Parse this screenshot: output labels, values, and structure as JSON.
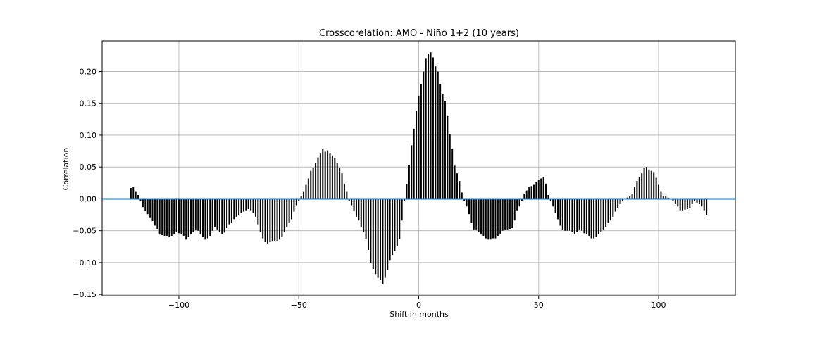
{
  "chart_data": {
    "type": "bar",
    "title": "Crosscorelation: AMO - Niño 1+2 (10 years)",
    "xlabel": "Shift in months",
    "ylabel": "Correlation",
    "xlim": [
      -132,
      132
    ],
    "ylim": [
      -0.152,
      0.248
    ],
    "xticks": [
      -100,
      -50,
      0,
      50,
      100
    ],
    "yticks": [
      -0.15,
      -0.1,
      -0.05,
      0.0,
      0.05,
      0.1,
      0.15,
      0.2
    ],
    "ytick_labels": [
      "−0.15",
      "−0.10",
      "−0.05",
      "0.00",
      "0.05",
      "0.10",
      "0.15",
      "0.20"
    ],
    "xtick_labels": [
      "−100",
      "−50",
      "0",
      "50",
      "100"
    ],
    "grid": true,
    "bar_color": "#000000",
    "zero_line_color": "#1f77b4",
    "x_start": -120,
    "x_step": 1,
    "values": [
      0.017,
      0.019,
      0.012,
      0.006,
      -0.004,
      -0.013,
      -0.019,
      -0.024,
      -0.029,
      -0.035,
      -0.042,
      -0.047,
      -0.056,
      -0.057,
      -0.058,
      -0.058,
      -0.06,
      -0.058,
      -0.055,
      -0.052,
      -0.054,
      -0.056,
      -0.058,
      -0.064,
      -0.06,
      -0.056,
      -0.052,
      -0.048,
      -0.05,
      -0.056,
      -0.06,
      -0.064,
      -0.062,
      -0.058,
      -0.05,
      -0.044,
      -0.048,
      -0.052,
      -0.055,
      -0.053,
      -0.046,
      -0.04,
      -0.037,
      -0.032,
      -0.028,
      -0.025,
      -0.022,
      -0.02,
      -0.018,
      -0.016,
      -0.018,
      -0.022,
      -0.028,
      -0.04,
      -0.052,
      -0.062,
      -0.068,
      -0.07,
      -0.068,
      -0.066,
      -0.066,
      -0.066,
      -0.064,
      -0.06,
      -0.052,
      -0.044,
      -0.038,
      -0.032,
      -0.02,
      -0.01,
      -0.004,
      0.004,
      0.012,
      0.022,
      0.032,
      0.044,
      0.048,
      0.056,
      0.065,
      0.072,
      0.078,
      0.074,
      0.076,
      0.072,
      0.068,
      0.064,
      0.056,
      0.048,
      0.04,
      0.024,
      0.012,
      -0.004,
      -0.01,
      -0.018,
      -0.028,
      -0.034,
      -0.044,
      -0.052,
      -0.063,
      -0.08,
      -0.1,
      -0.11,
      -0.118,
      -0.124,
      -0.127,
      -0.134,
      -0.124,
      -0.112,
      -0.096,
      -0.088,
      -0.082,
      -0.074,
      -0.063,
      -0.034,
      -0.004,
      0.023,
      0.053,
      0.084,
      0.11,
      0.138,
      0.162,
      0.18,
      0.2,
      0.22,
      0.228,
      0.23,
      0.222,
      0.208,
      0.2,
      0.18,
      0.164,
      0.154,
      0.13,
      0.102,
      0.078,
      0.052,
      0.04,
      0.028,
      0.01,
      -0.004,
      -0.012,
      -0.024,
      -0.038,
      -0.048,
      -0.048,
      -0.052,
      -0.056,
      -0.058,
      -0.062,
      -0.064,
      -0.064,
      -0.062,
      -0.062,
      -0.058,
      -0.056,
      -0.05,
      -0.048,
      -0.048,
      -0.047,
      -0.046,
      -0.034,
      -0.018,
      -0.012,
      -0.004,
      0.008,
      0.013,
      0.018,
      0.02,
      0.022,
      0.026,
      0.03,
      0.032,
      0.034,
      0.024,
      0.006,
      -0.004,
      -0.012,
      -0.022,
      -0.032,
      -0.042,
      -0.048,
      -0.05,
      -0.05,
      -0.05,
      -0.052,
      -0.056,
      -0.052,
      -0.048,
      -0.05,
      -0.054,
      -0.056,
      -0.058,
      -0.062,
      -0.062,
      -0.06,
      -0.056,
      -0.052,
      -0.048,
      -0.044,
      -0.038,
      -0.034,
      -0.028,
      -0.02,
      -0.014,
      -0.008,
      -0.004,
      0.001,
      0.002,
      0.004,
      0.008,
      0.018,
      0.028,
      0.034,
      0.04,
      0.048,
      0.05,
      0.046,
      0.044,
      0.042,
      0.033,
      0.022,
      0.012,
      0.005,
      0.004,
      0.002,
      -0.001,
      -0.004,
      -0.008,
      -0.012,
      -0.018,
      -0.018,
      -0.017,
      -0.016,
      -0.014,
      -0.008,
      -0.004,
      -0.006,
      -0.008,
      -0.012,
      -0.018,
      -0.026
    ]
  }
}
